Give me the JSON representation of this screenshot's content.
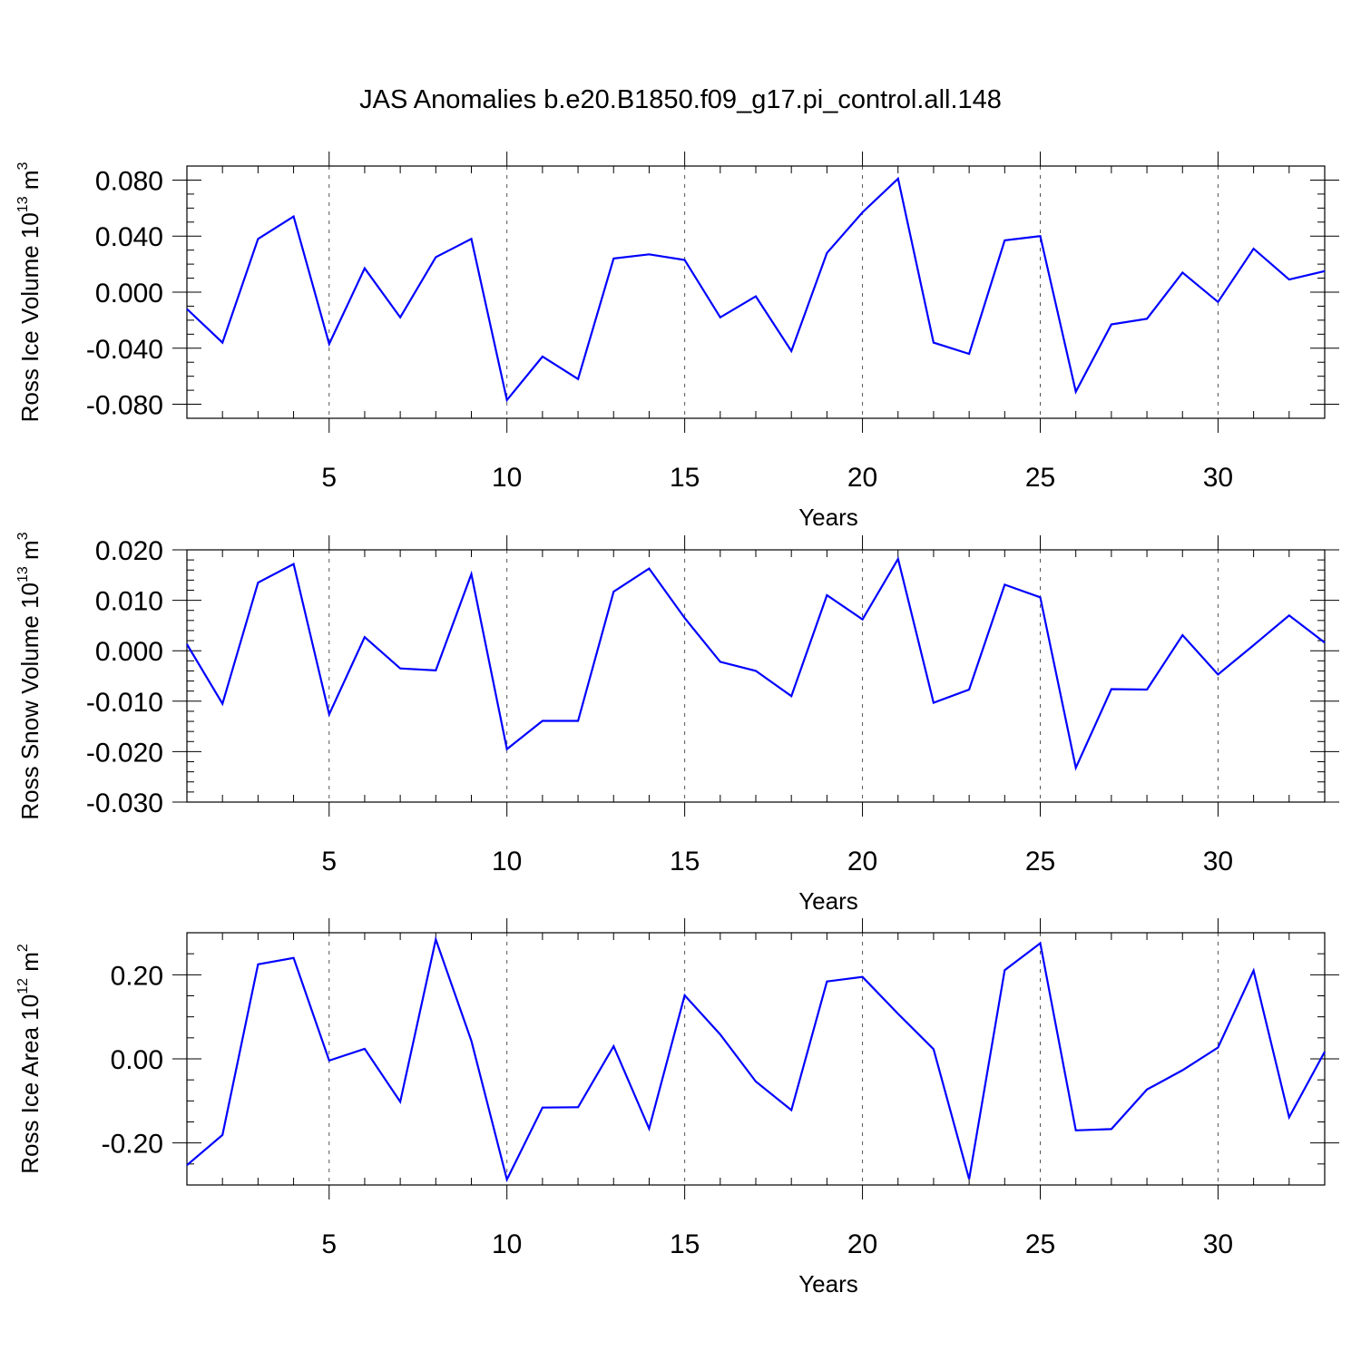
{
  "title": "JAS Anomalies b.e20.B1850.f09_g17.pi_control.all.148",
  "colors": {
    "series": "#0000ff",
    "axes": "#000000"
  },
  "chart_data": [
    {
      "type": "line",
      "ylabel_main": "Ross Ice Volume 10",
      "ylabel_exp": "13",
      "ylabel_unit": " m",
      "ylabel_unit_exp": "3",
      "xlabel": "Years",
      "xlim": [
        1,
        33
      ],
      "ylim": [
        -0.09,
        0.09
      ],
      "xticks": [
        5,
        10,
        15,
        20,
        25,
        30
      ],
      "xtick_labels": [
        "5",
        "10",
        "15",
        "20",
        "25",
        "30"
      ],
      "yticks": [
        0.08,
        0.04,
        0.0,
        -0.04,
        -0.08
      ],
      "ytick_labels": [
        "0.080",
        "0.040",
        "0.000",
        "-0.040",
        "-0.080"
      ],
      "y_minor_step": 0.01,
      "grid": "vertical dashed at major x ticks",
      "x": [
        1,
        2,
        3,
        4,
        5,
        6,
        7,
        8,
        9,
        10,
        11,
        12,
        13,
        14,
        15,
        16,
        17,
        18,
        19,
        20,
        21,
        22,
        23,
        24,
        25,
        26,
        27,
        28,
        29,
        30,
        31,
        32,
        33
      ],
      "values": [
        -0.012,
        -0.036,
        0.038,
        0.054,
        -0.037,
        0.017,
        -0.018,
        0.025,
        0.038,
        -0.077,
        -0.046,
        -0.062,
        0.024,
        0.027,
        0.023,
        -0.018,
        -0.003,
        -0.042,
        0.028,
        0.057,
        0.081,
        -0.036,
        -0.044,
        0.037,
        0.04,
        -0.071,
        -0.023,
        -0.019,
        0.014,
        -0.007,
        0.031,
        0.009,
        0.015
      ]
    },
    {
      "type": "line",
      "ylabel_main": "Ross Snow Volume 10",
      "ylabel_exp": "13",
      "ylabel_unit": " m",
      "ylabel_unit_exp": "3",
      "xlabel": "Years",
      "xlim": [
        1,
        33
      ],
      "ylim": [
        -0.03,
        0.02
      ],
      "xticks": [
        5,
        10,
        15,
        20,
        25,
        30
      ],
      "xtick_labels": [
        "5",
        "10",
        "15",
        "20",
        "25",
        "30"
      ],
      "yticks": [
        0.02,
        0.01,
        0.0,
        -0.01,
        -0.02,
        -0.03
      ],
      "ytick_labels": [
        "0.020",
        "0.010",
        "0.000",
        "-0.010",
        "-0.020",
        "-0.030"
      ],
      "y_minor_step": 0.002,
      "grid": "vertical dashed at major x ticks",
      "x": [
        1,
        2,
        3,
        4,
        5,
        6,
        7,
        8,
        9,
        10,
        11,
        12,
        13,
        14,
        15,
        16,
        17,
        18,
        19,
        20,
        21,
        22,
        23,
        24,
        25,
        26,
        27,
        28,
        29,
        30,
        31,
        32,
        33
      ],
      "values": [
        0.0013,
        -0.0105,
        0.0135,
        0.0172,
        -0.0126,
        0.0027,
        -0.0035,
        -0.0039,
        0.0152,
        -0.0195,
        -0.0139,
        -0.0139,
        0.0117,
        0.0163,
        0.0065,
        -0.0022,
        -0.004,
        -0.009,
        0.011,
        0.0062,
        0.0182,
        -0.0103,
        -0.0077,
        0.0131,
        0.0106,
        -0.0232,
        -0.0076,
        -0.0077,
        0.0031,
        -0.0047,
        0.0011,
        0.007,
        0.0016
      ]
    },
    {
      "type": "line",
      "ylabel_main": "Ross Ice Area 10",
      "ylabel_exp": "12",
      "ylabel_unit": " m",
      "ylabel_unit_exp": "2",
      "xlabel": "Years",
      "xlim": [
        1,
        33
      ],
      "ylim": [
        -0.3,
        0.3
      ],
      "xticks": [
        5,
        10,
        15,
        20,
        25,
        30
      ],
      "xtick_labels": [
        "5",
        "10",
        "15",
        "20",
        "25",
        "30"
      ],
      "yticks": [
        0.2,
        0.0,
        -0.2
      ],
      "ytick_labels": [
        "0.20",
        "0.00",
        "-0.20"
      ],
      "y_minor_step": 0.05,
      "grid": "vertical dashed at major x ticks",
      "x": [
        1,
        2,
        3,
        4,
        5,
        6,
        7,
        8,
        9,
        10,
        11,
        12,
        13,
        14,
        15,
        16,
        17,
        18,
        19,
        20,
        21,
        22,
        23,
        24,
        25,
        26,
        27,
        28,
        29,
        30,
        31,
        32,
        33
      ],
      "values": [
        -0.253,
        -0.181,
        0.225,
        0.24,
        -0.004,
        0.024,
        -0.102,
        0.284,
        0.043,
        -0.287,
        -0.116,
        -0.115,
        0.03,
        -0.166,
        0.151,
        0.058,
        -0.054,
        -0.122,
        0.184,
        0.195,
        0.107,
        0.023,
        -0.286,
        0.211,
        0.275,
        -0.17,
        -0.167,
        -0.073,
        -0.027,
        0.027,
        0.21,
        -0.139,
        0.017
      ]
    }
  ]
}
